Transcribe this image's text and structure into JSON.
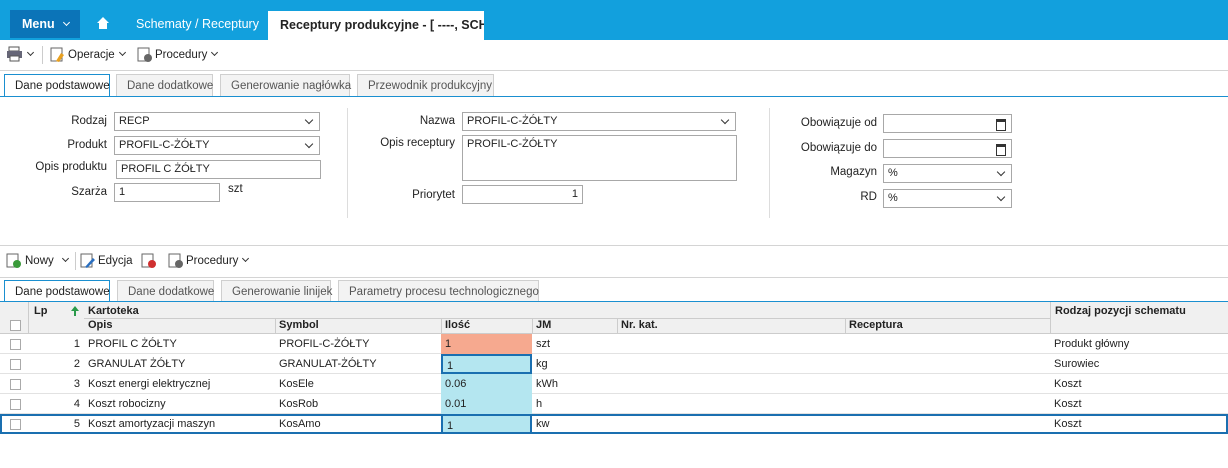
{
  "topbar": {
    "menu": "Menu",
    "tabs": [
      "Schematy / Receptury",
      "Receptury produkcyjne - [ ----, SCH"
    ]
  },
  "toolbar": {
    "items": [
      "Operacje",
      "Procedury"
    ]
  },
  "header_tabs": [
    "Dane podstawowe",
    "Dane dodatkowe",
    "Generowanie nagłówka",
    "Przewodnik produkcyjny"
  ],
  "form": {
    "rodzaj": {
      "label": "Rodzaj",
      "value": "RECP"
    },
    "produkt": {
      "label": "Produkt",
      "value": "PROFIL-C-ŻÓŁTY"
    },
    "opis_produktu": {
      "label": "Opis produktu",
      "value": "PROFIL C ŻÓŁTY"
    },
    "szarza": {
      "label": "Szarża",
      "value": 1,
      "unit": "szt"
    },
    "nazwa": {
      "label": "Nazwa",
      "value": "PROFIL-C-ŻÓŁTY"
    },
    "opis_receptury": {
      "label": "Opis receptury",
      "value": "PROFIL-C-ŻÓŁTY"
    },
    "priorytet": {
      "label": "Priorytet",
      "value": 1
    },
    "obowiazuje_od": {
      "label": "Obowiązuje od"
    },
    "obowiazuje_do": {
      "label": "Obowiązuje do"
    },
    "magazyn": {
      "label": "Magazyn",
      "value": "%"
    },
    "rd": {
      "label": "RD",
      "value": "%"
    }
  },
  "lines_toolbar": {
    "items": [
      "Nowy",
      "Edycja",
      "Procedury"
    ]
  },
  "lines_tabs": [
    "Dane podstawowe",
    "Dane dodatkowe",
    "Generowanie linijek",
    "Parametry procesu technologicznego"
  ],
  "table": {
    "group_headers": [
      "Lp",
      "Kartoteka",
      "Rodzaj pozycji schematu"
    ],
    "columns": [
      "Opis",
      "Symbol",
      "Ilość",
      "JM",
      "Nr. kat.",
      "Receptura"
    ],
    "rows": [
      {
        "lp": 1,
        "opis": "PROFIL C ŻÓŁTY",
        "symbol": "PROFIL-C-ŻÓŁTY",
        "ilosc": 1,
        "jm": "szt",
        "rodzaj": "Produkt główny"
      },
      {
        "lp": 2,
        "opis": "GRANULAT ŻÓŁTY",
        "symbol": "GRANULAT-ŻÓŁTY",
        "ilosc": 1,
        "jm": "kg",
        "rodzaj": "Surowiec"
      },
      {
        "lp": 3,
        "opis": "Koszt energi elektrycznej",
        "symbol": "KosEle",
        "ilosc": 0.06,
        "jm": "kWh",
        "rodzaj": "Koszt"
      },
      {
        "lp": 4,
        "opis": "Koszt robocizny",
        "symbol": "KosRob",
        "ilosc": 0.01,
        "jm": "h",
        "rodzaj": "Koszt"
      },
      {
        "lp": 5,
        "opis": "Koszt amortyzacji maszyn",
        "symbol": "KosAmo",
        "ilosc": 1,
        "jm": "kw",
        "rodzaj": "Koszt"
      }
    ]
  }
}
